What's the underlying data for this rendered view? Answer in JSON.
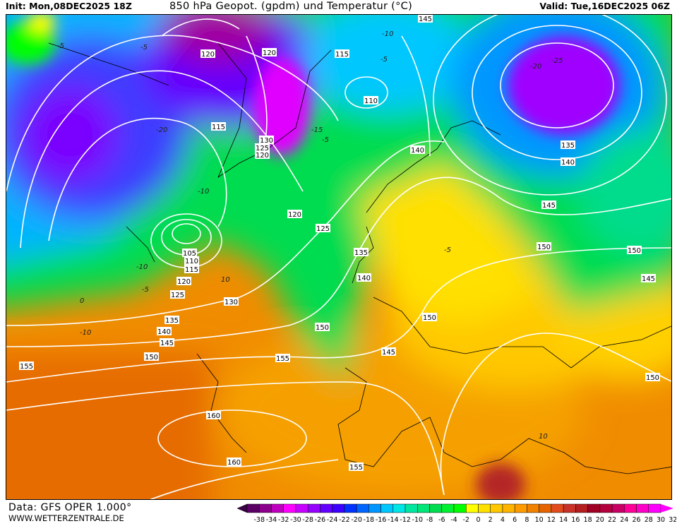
{
  "header": {
    "init": "Init: Mon,08DEC2025 18Z",
    "title": "850 hPa Geopot. (gpdm) und Temperatur (°C)",
    "valid": "Valid: Tue,16DEC2025 06Z"
  },
  "footer": {
    "data_source": "Data: GFS OPER 1.000°",
    "website": "WWW.WETTERZENTRALE.DE"
  },
  "legend": {
    "ticks": [
      "-38",
      "-34",
      "-32",
      "-30",
      "-28",
      "-26",
      "-24",
      "-22",
      "-20",
      "-18",
      "-16",
      "-14",
      "-12",
      "-10",
      "-8",
      "-6",
      "-4",
      "-2",
      "0",
      "2",
      "4",
      "6",
      "8",
      "10",
      "12",
      "14",
      "16",
      "18",
      "20",
      "22",
      "24",
      "26",
      "28",
      "30",
      "32"
    ],
    "underflow_color": "#3c0046",
    "overflow_color": "#ff00ff",
    "colors": [
      "#5a0064",
      "#8c008c",
      "#be00be",
      "#ff00ff",
      "#c800ff",
      "#9600ff",
      "#6400ff",
      "#3c00ff",
      "#0032ff",
      "#0064ff",
      "#0096ff",
      "#00c8ff",
      "#00e6e6",
      "#00e6a0",
      "#00e678",
      "#00dc50",
      "#00f032",
      "#00ff00",
      "#ffff00",
      "#ffe100",
      "#ffc800",
      "#ffb400",
      "#ff9b00",
      "#f08200",
      "#e66400",
      "#e14b1e",
      "#c83228",
      "#b41e1e",
      "#a00023",
      "#b4003c",
      "#c80064",
      "#ff0096",
      "#ff00c8",
      "#ff00ff"
    ]
  },
  "geopotential_labels": [
    "145",
    "120",
    "120",
    "115",
    "110",
    "115",
    "130",
    "125",
    "120",
    "140",
    "135",
    "140",
    "145",
    "120",
    "125",
    "135",
    "150",
    "150",
    "105",
    "110",
    "115",
    "120",
    "140",
    "145",
    "125",
    "130",
    "135",
    "150",
    "150",
    "140",
    "145",
    "145",
    "150",
    "155",
    "155",
    "150",
    "160",
    "160",
    "155"
  ],
  "temperature_labels": [
    "-5",
    "-20",
    "-25",
    "-20",
    "-15",
    "-10",
    "-5",
    "-5",
    "-10",
    "-10",
    "-5",
    "0",
    "-10",
    "10",
    "-5",
    "-5",
    "10"
  ],
  "colors": {
    "contour": "#ffffff",
    "coast": "#000000"
  }
}
